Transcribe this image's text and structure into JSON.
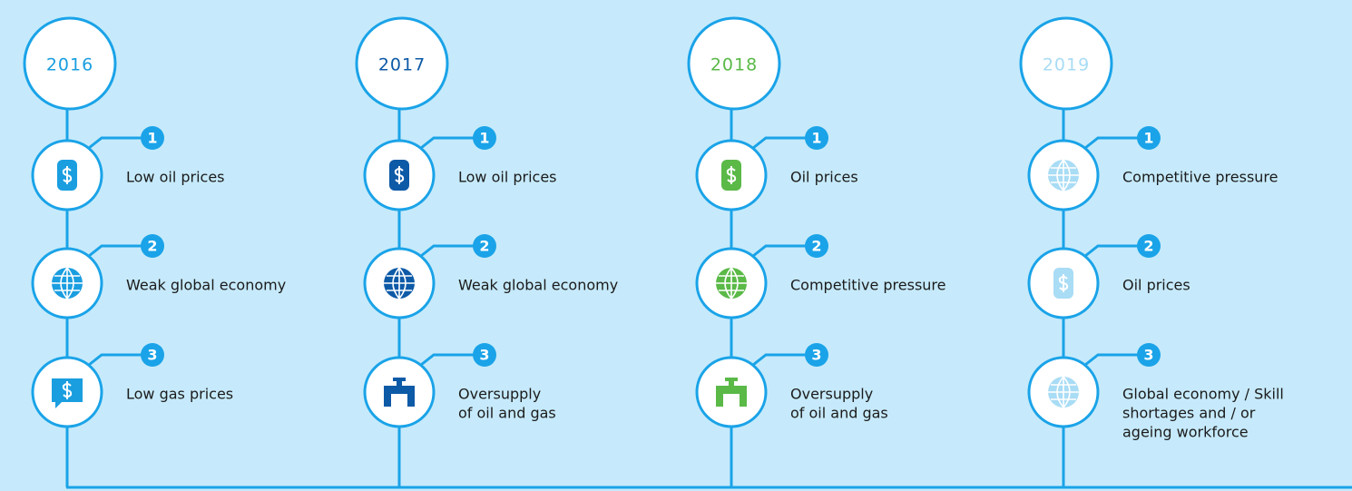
{
  "columns": [
    {
      "year": "2016",
      "color": "#1a9ee0",
      "items": [
        {
          "rank": "1",
          "label": [
            "Low oil prices"
          ]
        },
        {
          "rank": "2",
          "label": [
            "Weak global economy"
          ]
        },
        {
          "rank": "3",
          "label": [
            "Low gas prices"
          ]
        }
      ]
    },
    {
      "year": "2017",
      "color": "#0d5aa7",
      "items": [
        {
          "rank": "1",
          "label": [
            "Low oil prices"
          ]
        },
        {
          "rank": "2",
          "label": [
            "Weak global economy"
          ]
        },
        {
          "rank": "3",
          "label": [
            "Oversupply",
            "of oil and gas"
          ]
        }
      ]
    },
    {
      "year": "2018",
      "color": "#5ab947",
      "items": [
        {
          "rank": "1",
          "label": [
            "Oil prices"
          ]
        },
        {
          "rank": "2",
          "label": [
            "Competitive pressure"
          ]
        },
        {
          "rank": "3",
          "label": [
            "Oversupply",
            "of oil and gas"
          ]
        }
      ]
    },
    {
      "year": "2019",
      "color": "#a9dcf5",
      "items": [
        {
          "rank": "1",
          "label": [
            "Competitive pressure"
          ]
        },
        {
          "rank": "2",
          "label": [
            "Oil prices"
          ]
        },
        {
          "rank": "3",
          "label": [
            "Global economy / Skill",
            "shortages and / or",
            "ageing workforce"
          ]
        }
      ]
    }
  ]
}
